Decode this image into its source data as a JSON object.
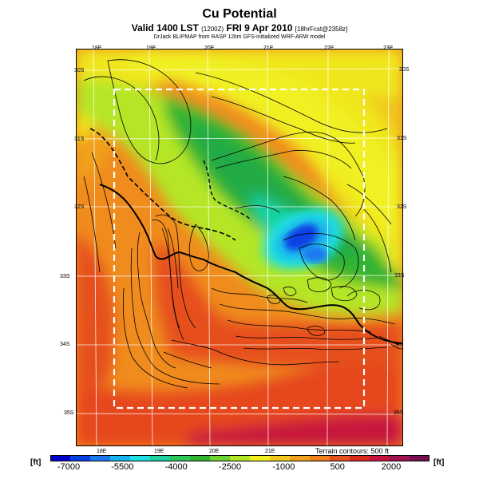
{
  "header": {
    "title": "Cu Potential",
    "subtitle_main": "Valid 1400 LST",
    "subtitle_z": "(1200Z)",
    "subtitle_date": "FRI 9 Apr 2010",
    "subtitle_fcst": "[18hrFcst@2358z]",
    "credit": "DrJack BLIPMAP from RASP 12km GFS-initialized WRF-ARW model"
  },
  "map": {
    "lon_top_labels": [
      "18E",
      "19E",
      "20E",
      "21E",
      "22E",
      "23E"
    ],
    "lon_bottom_labels": [
      "18E",
      "19E",
      "20E",
      "21E"
    ],
    "lat_left_labels": [
      "30S",
      "31S",
      "32S",
      "33S",
      "34S",
      "35S"
    ],
    "lat_right_labels": [
      "30S",
      "31S",
      "32S",
      "33S",
      "34S",
      "35S"
    ],
    "terrain_note": "Terrain contours: 500 ft"
  },
  "colorbar": {
    "unit_left": "[ft]",
    "unit_right": "[ft]",
    "labels": [
      "-7000",
      "-5500",
      "-4000",
      "-2500",
      "-1000",
      "500",
      "2000"
    ],
    "colors": [
      "#0000cc",
      "#0a3fe6",
      "#1a78f0",
      "#19b4f0",
      "#1ee0e0",
      "#19d2a0",
      "#2cc85a",
      "#32b432",
      "#6ed232",
      "#b4e628",
      "#f0f020",
      "#f0c81e",
      "#f0a01e",
      "#f07d1e",
      "#e6501e",
      "#dc281e",
      "#c8143c",
      "#a01450",
      "#780f50"
    ]
  }
}
